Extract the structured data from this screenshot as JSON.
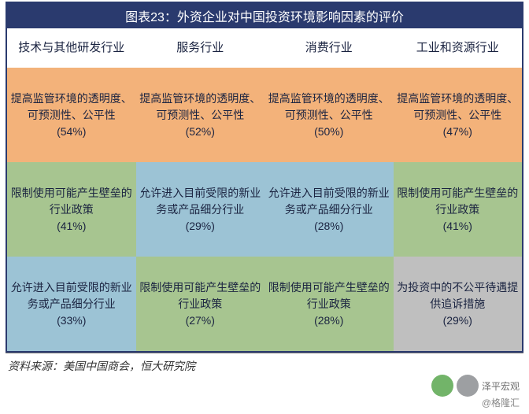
{
  "title": "图表23：外资企业对中国投资环境影响因素的评价",
  "headers": [
    "技术与其他研发行业",
    "服务行业",
    "消费行业",
    "工业和资源行业"
  ],
  "rows": [
    [
      {
        "text": "提高监管环境的透明度、可预测性、公平性",
        "pct": "(54%)",
        "color": "cell-orange"
      },
      {
        "text": "提高监管环境的透明度、可预测性、公平性",
        "pct": "(52%)",
        "color": "cell-orange"
      },
      {
        "text": "提高监管环境的透明度、可预测性、公平性",
        "pct": "(50%)",
        "color": "cell-orange"
      },
      {
        "text": "提高监管环境的透明度、可预测性、公平性",
        "pct": "(47%)",
        "color": "cell-orange"
      }
    ],
    [
      {
        "text": "限制使用可能产生壁垒的行业政策",
        "pct": "(41%)",
        "color": "cell-green"
      },
      {
        "text": "允许进入目前受限的新业务或产品细分行业",
        "pct": "(29%)",
        "color": "cell-blue"
      },
      {
        "text": "允许进入目前受限的新业务或产品细分行业",
        "pct": "(28%)",
        "color": "cell-blue"
      },
      {
        "text": "限制使用可能产生壁垒的行业政策",
        "pct": "(41%)",
        "color": "cell-green"
      }
    ],
    [
      {
        "text": "允许进入目前受限的新业务或产品细分行业",
        "pct": "(33%)",
        "color": "cell-blue"
      },
      {
        "text": "限制使用可能产生壁垒的行业政策",
        "pct": "(27%)",
        "color": "cell-green"
      },
      {
        "text": "限制使用可能产生壁垒的行业政策",
        "pct": "(28%)",
        "color": "cell-green"
      },
      {
        "text": "为投资中的不公平待遇提供追诉措施",
        "pct": "(29%)",
        "color": "cell-gray"
      }
    ]
  ],
  "source": "资料来源：美国中国商会，恒大研究院",
  "watermark_main": "泽平宏观",
  "watermark_sub": "@格隆汇"
}
